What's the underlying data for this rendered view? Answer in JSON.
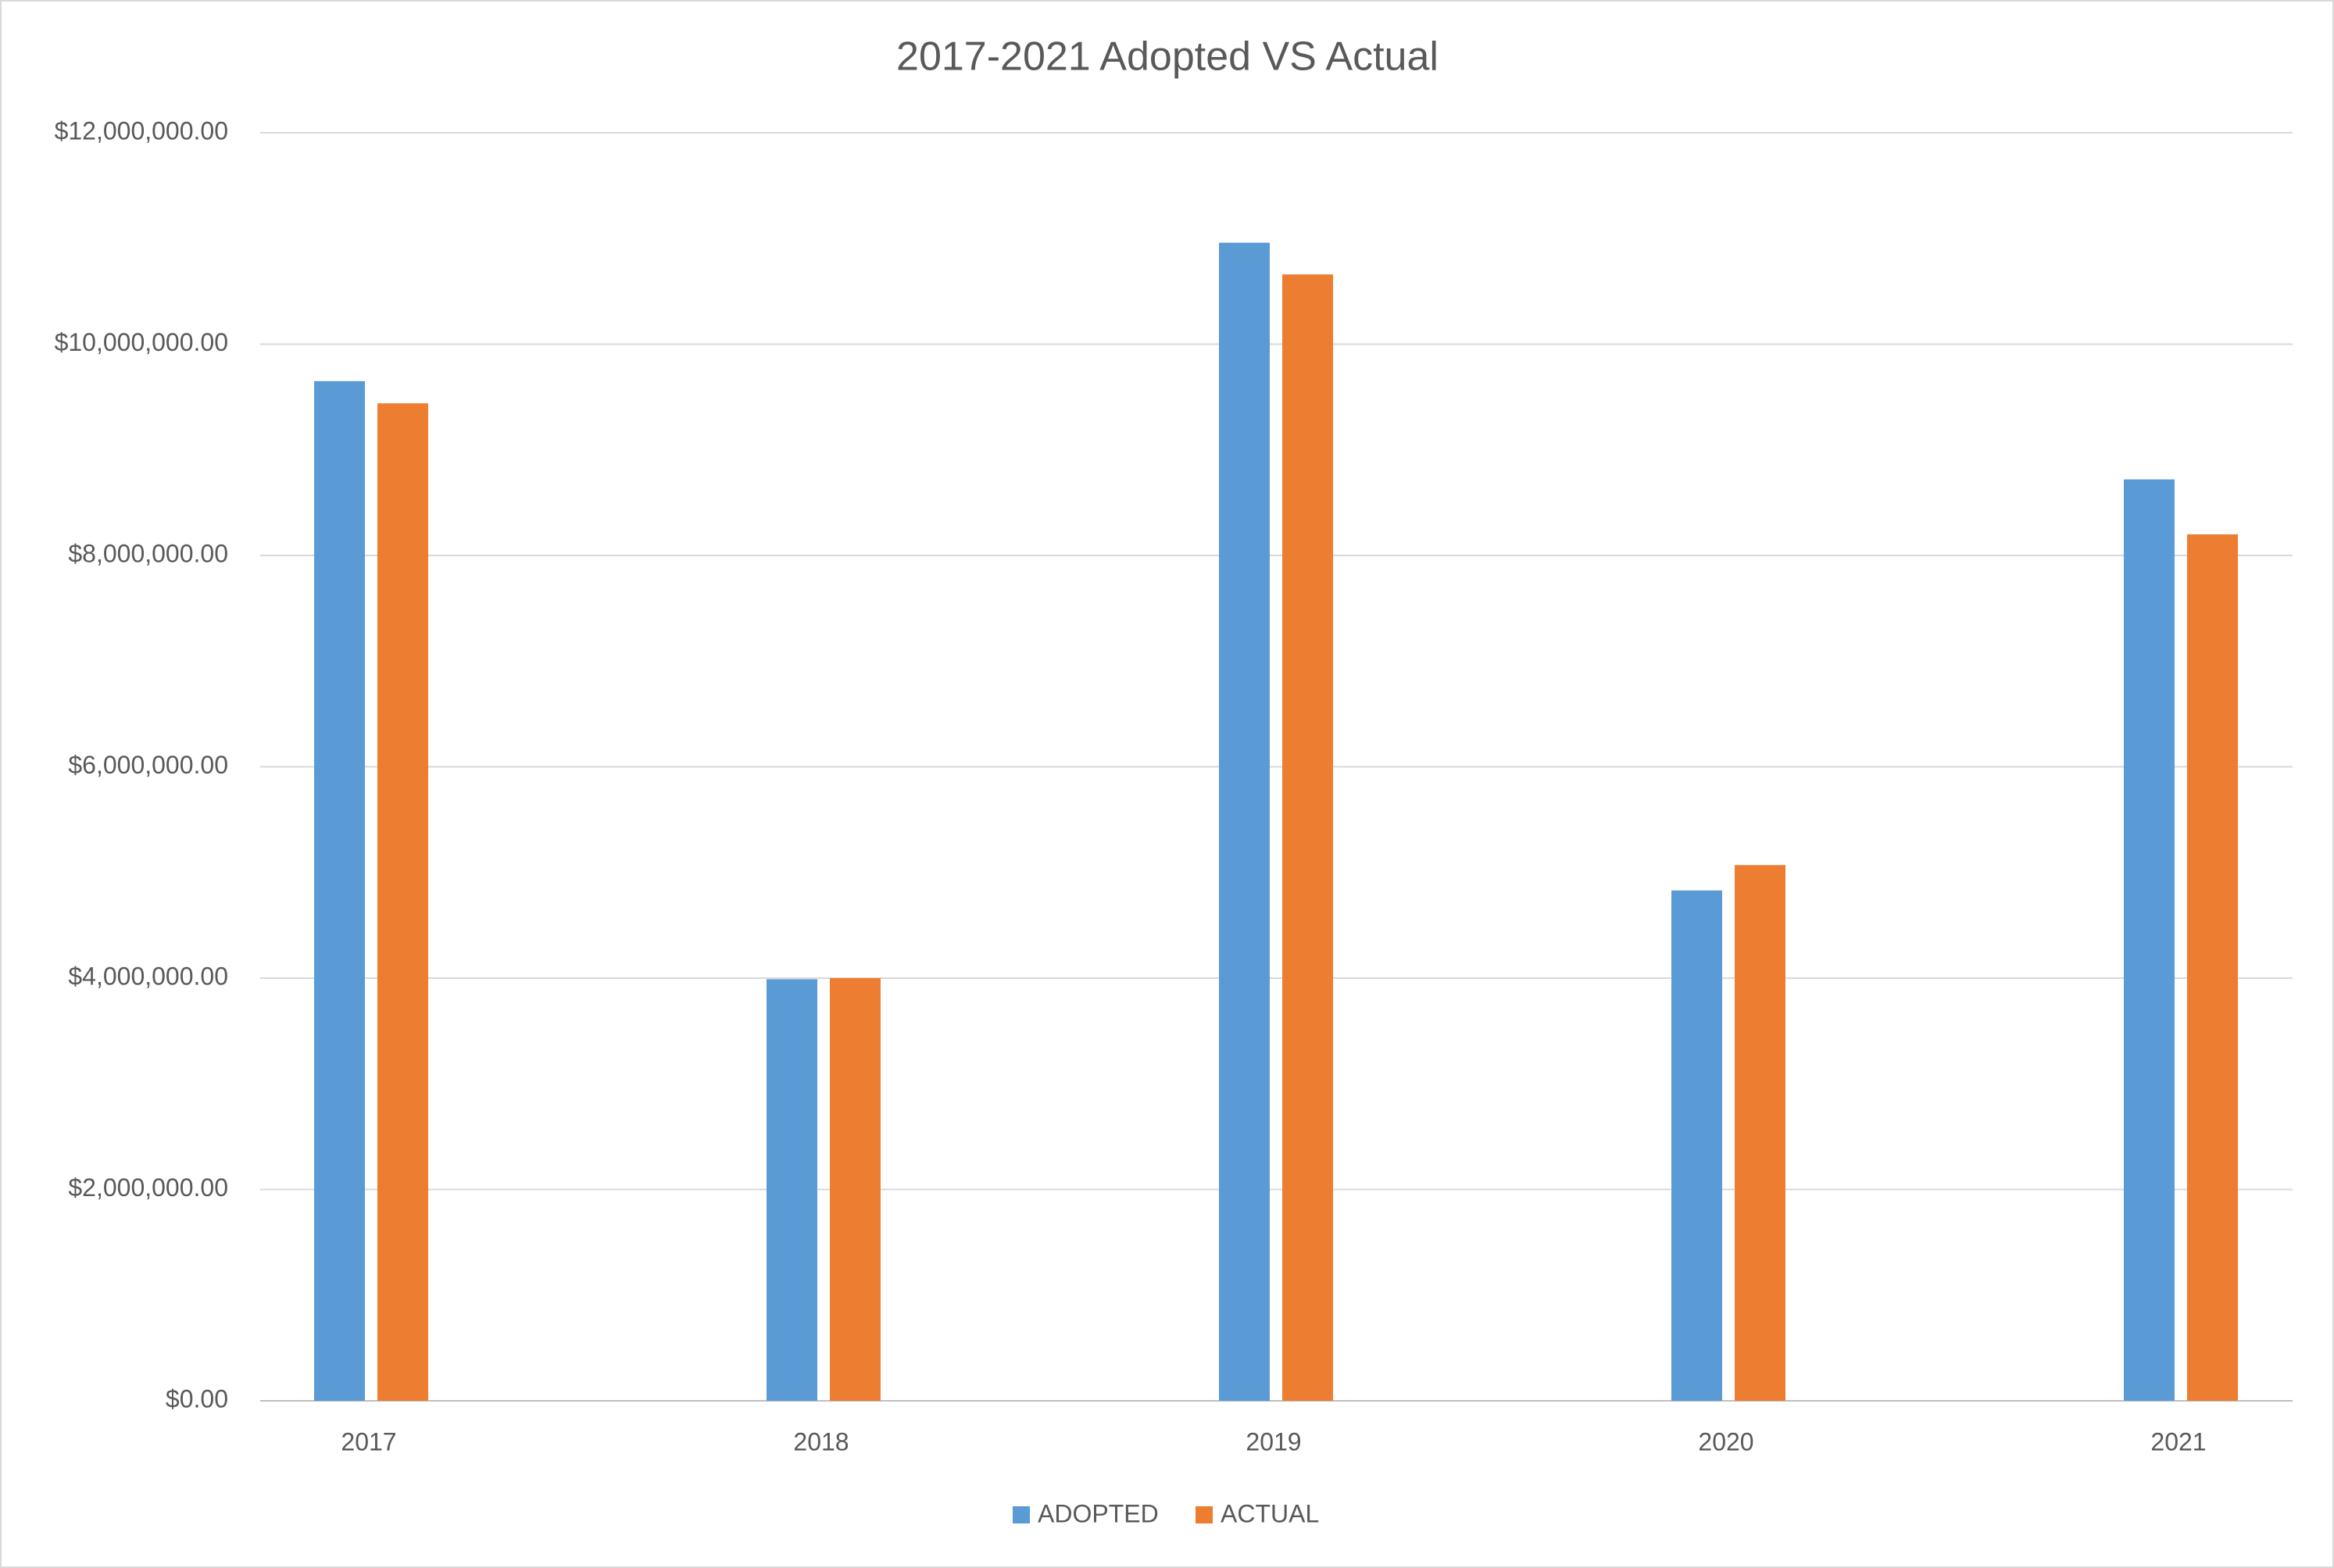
{
  "chart_data": {
    "type": "bar",
    "title": "2017-2021 Adopted VS Actual",
    "categories": [
      "2017",
      "2018",
      "2019",
      "2020",
      "2021"
    ],
    "series": [
      {
        "name": "ADOPTED",
        "color": "#5b9bd5",
        "values": [
          9650000,
          3990000,
          10960000,
          4830000,
          8720000
        ]
      },
      {
        "name": "ACTUAL",
        "color": "#ed7d31",
        "values": [
          9440000,
          4000000,
          10660000,
          5070000,
          8200000
        ]
      }
    ],
    "ylim": [
      0,
      12000000
    ],
    "yticks": [
      {
        "value": 0,
        "label": "$0.00"
      },
      {
        "value": 2000000,
        "label": "$2,000,000.00"
      },
      {
        "value": 4000000,
        "label": "$4,000,000.00"
      },
      {
        "value": 6000000,
        "label": "$6,000,000.00"
      },
      {
        "value": 8000000,
        "label": "$8,000,000.00"
      },
      {
        "value": 10000000,
        "label": "$10,000,000.00"
      },
      {
        "value": 12000000,
        "label": "$12,000,000.00"
      }
    ],
    "grid": true,
    "legend": "bottom"
  }
}
